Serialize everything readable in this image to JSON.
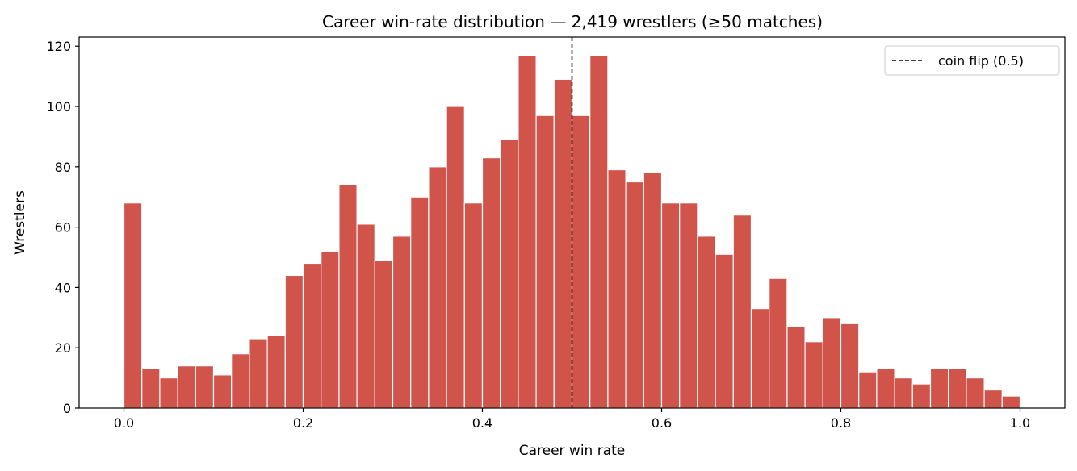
{
  "chart_data": {
    "type": "bar",
    "title": "Career win-rate distribution — 2,419 wrestlers (≥50 matches)",
    "xlabel": "Career win rate",
    "ylabel": "Wrestlers",
    "xlim": [
      -0.05,
      1.05
    ],
    "ylim": [
      0,
      123
    ],
    "bin_width": 0.02,
    "bin_starts": [
      0.0,
      0.02,
      0.04,
      0.06,
      0.08,
      0.1,
      0.12,
      0.14,
      0.16,
      0.18,
      0.2,
      0.22,
      0.24,
      0.26,
      0.28,
      0.3,
      0.32,
      0.34,
      0.36,
      0.38,
      0.4,
      0.42,
      0.44,
      0.46,
      0.48,
      0.5,
      0.52,
      0.54,
      0.56,
      0.58,
      0.6,
      0.62,
      0.64,
      0.66,
      0.68,
      0.7,
      0.72,
      0.74,
      0.76,
      0.78,
      0.8,
      0.82,
      0.84,
      0.86,
      0.88,
      0.9,
      0.92,
      0.94,
      0.96,
      0.98
    ],
    "values": [
      68,
      13,
      10,
      14,
      14,
      11,
      18,
      23,
      24,
      44,
      48,
      52,
      74,
      61,
      49,
      57,
      70,
      80,
      100,
      68,
      83,
      89,
      117,
      97,
      109,
      97,
      117,
      79,
      75,
      78,
      68,
      68,
      57,
      51,
      64,
      33,
      43,
      27,
      22,
      30,
      28,
      12,
      13,
      10,
      8,
      13,
      13,
      10,
      6,
      4
    ],
    "x_ticks": [
      0.0,
      0.2,
      0.4,
      0.6,
      0.8,
      1.0
    ],
    "x_tick_labels": [
      "0.0",
      "0.2",
      "0.4",
      "0.6",
      "0.8",
      "1.0"
    ],
    "y_ticks": [
      0,
      20,
      40,
      60,
      80,
      100,
      120
    ],
    "y_tick_labels": [
      "0",
      "20",
      "40",
      "60",
      "80",
      "100",
      "120"
    ],
    "reference_line": {
      "x": 0.5,
      "label": "coin flip (0.5)",
      "style": "dashed",
      "color": "#000000"
    },
    "legend": {
      "position": "top-right",
      "entries": [
        "coin flip (0.5)"
      ]
    },
    "bar_color": "#d1544b",
    "bar_edge_color": "#ffffff",
    "grid": false
  }
}
